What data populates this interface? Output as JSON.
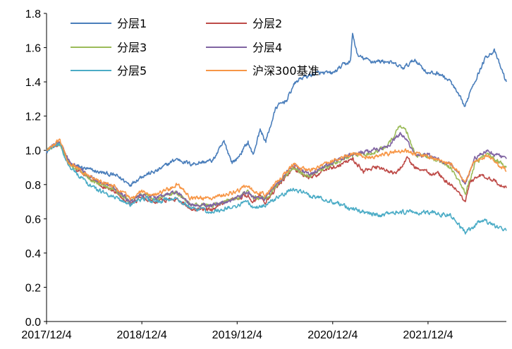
{
  "chart_data": {
    "type": "line",
    "title": "",
    "xlabel": "",
    "ylabel": "",
    "ylim": [
      0.0,
      1.8
    ],
    "yticks": [
      0.0,
      0.2,
      0.4,
      0.6,
      0.8,
      1.0,
      1.2,
      1.4,
      1.6,
      1.8
    ],
    "ytick_labels": [
      "0.0",
      "0.2",
      "0.4",
      "0.6",
      "0.8",
      "1.0",
      "1.2",
      "1.4",
      "1.6",
      "1.8"
    ],
    "xlim": [
      "2017-12-04",
      "2022-09-30"
    ],
    "xticks": [
      "2017-12-04",
      "2018-12-04",
      "2019-12-04",
      "2020-12-04",
      "2021-12-04"
    ],
    "xtick_labels": [
      "2017/12/4",
      "2018/12/4",
      "2019/12/4",
      "2020/12/4",
      "2021/12/4"
    ],
    "grid": false,
    "legend_position": "top-left, two columns",
    "series": [
      {
        "name": "分层1",
        "color": "#4a7ebb",
        "x": [
          "2017-12-04",
          "2018-01-01",
          "2018-01-25",
          "2018-03-01",
          "2018-06-01",
          "2018-09-01",
          "2018-10-20",
          "2018-12-04",
          "2019-02-01",
          "2019-04-15",
          "2019-06-10",
          "2019-09-01",
          "2019-10-15",
          "2019-11-15",
          "2019-12-04",
          "2020-01-15",
          "2020-02-03",
          "2020-03-01",
          "2020-03-23",
          "2020-05-01",
          "2020-06-15",
          "2020-07-06",
          "2020-08-01",
          "2020-10-01",
          "2020-12-04",
          "2021-01-15",
          "2021-02-10",
          "2021-02-18",
          "2021-03-10",
          "2021-05-01",
          "2021-07-01",
          "2021-09-01",
          "2021-10-15",
          "2021-12-04",
          "2022-01-15",
          "2022-03-01",
          "2022-04-26",
          "2022-05-15",
          "2022-06-15",
          "2022-07-15",
          "2022-08-15",
          "2022-09-30"
        ],
        "values": [
          1.0,
          1.02,
          1.05,
          0.92,
          0.88,
          0.85,
          0.8,
          0.85,
          0.88,
          0.95,
          0.92,
          0.94,
          1.05,
          0.93,
          0.95,
          1.05,
          0.97,
          1.12,
          1.05,
          1.25,
          1.3,
          1.38,
          1.42,
          1.45,
          1.45,
          1.5,
          1.52,
          1.68,
          1.55,
          1.52,
          1.52,
          1.48,
          1.53,
          1.45,
          1.45,
          1.4,
          1.25,
          1.35,
          1.45,
          1.55,
          1.58,
          1.4
        ]
      },
      {
        "name": "分层2",
        "color": "#be4b48",
        "x": [
          "2017-12-04",
          "2018-01-25",
          "2018-03-01",
          "2018-06-01",
          "2018-09-01",
          "2018-10-20",
          "2018-12-04",
          "2019-02-01",
          "2019-04-15",
          "2019-06-10",
          "2019-09-01",
          "2019-10-01",
          "2019-12-04",
          "2020-01-15",
          "2020-02-03",
          "2020-03-01",
          "2020-03-23",
          "2020-07-06",
          "2020-09-01",
          "2020-12-04",
          "2021-02-18",
          "2021-04-01",
          "2021-06-01",
          "2021-08-01",
          "2021-09-15",
          "2021-10-15",
          "2021-12-04",
          "2022-01-15",
          "2022-03-01",
          "2022-04-26",
          "2022-05-15",
          "2022-07-01",
          "2022-09-30"
        ],
        "values": [
          1.0,
          1.04,
          0.92,
          0.82,
          0.75,
          0.69,
          0.72,
          0.7,
          0.72,
          0.66,
          0.65,
          0.68,
          0.72,
          0.74,
          0.7,
          0.74,
          0.7,
          0.9,
          0.84,
          0.9,
          0.95,
          0.88,
          0.9,
          0.86,
          0.95,
          0.9,
          0.87,
          0.86,
          0.8,
          0.7,
          0.82,
          0.86,
          0.78
        ]
      },
      {
        "name": "分层3",
        "color": "#9bbb59",
        "x": [
          "2017-12-04",
          "2018-01-25",
          "2018-03-01",
          "2018-06-01",
          "2018-09-01",
          "2018-10-20",
          "2018-12-04",
          "2019-02-01",
          "2019-04-15",
          "2019-06-10",
          "2019-09-01",
          "2019-12-04",
          "2020-01-15",
          "2020-02-03",
          "2020-03-23",
          "2020-07-06",
          "2020-09-01",
          "2020-12-04",
          "2021-02-18",
          "2021-05-01",
          "2021-07-01",
          "2021-08-20",
          "2021-09-15",
          "2021-10-15",
          "2021-12-04",
          "2022-03-01",
          "2022-04-26",
          "2022-06-01",
          "2022-07-15",
          "2022-09-30"
        ],
        "values": [
          1.0,
          1.04,
          0.92,
          0.82,
          0.76,
          0.7,
          0.74,
          0.72,
          0.76,
          0.68,
          0.68,
          0.72,
          0.76,
          0.72,
          0.72,
          0.9,
          0.85,
          0.92,
          0.97,
          0.98,
          1.02,
          1.15,
          1.1,
          0.98,
          0.96,
          0.9,
          0.75,
          0.92,
          0.98,
          0.9
        ]
      },
      {
        "name": "分层4",
        "color": "#8064a2",
        "x": [
          "2017-12-04",
          "2018-01-25",
          "2018-03-01",
          "2018-06-01",
          "2018-09-01",
          "2018-10-20",
          "2018-12-04",
          "2019-02-01",
          "2019-04-15",
          "2019-06-10",
          "2019-09-01",
          "2019-12-04",
          "2020-01-15",
          "2020-02-03",
          "2020-03-23",
          "2020-07-06",
          "2020-09-01",
          "2020-12-04",
          "2021-02-18",
          "2021-05-01",
          "2021-07-01",
          "2021-08-20",
          "2021-09-15",
          "2021-10-15",
          "2021-12-04",
          "2022-03-01",
          "2022-04-26",
          "2022-06-01",
          "2022-07-15",
          "2022-09-30"
        ],
        "values": [
          1.0,
          1.05,
          0.93,
          0.84,
          0.77,
          0.7,
          0.74,
          0.72,
          0.76,
          0.68,
          0.68,
          0.72,
          0.76,
          0.72,
          0.72,
          0.92,
          0.86,
          0.93,
          0.98,
          1.0,
          1.02,
          1.1,
          1.05,
          0.98,
          0.97,
          0.92,
          0.8,
          0.95,
          1.0,
          0.95
        ]
      },
      {
        "name": "分层5",
        "color": "#4bacc6",
        "x": [
          "2017-12-04",
          "2018-01-25",
          "2018-03-01",
          "2018-06-01",
          "2018-09-01",
          "2018-10-20",
          "2018-12-04",
          "2019-02-01",
          "2019-04-15",
          "2019-06-10",
          "2019-09-01",
          "2019-12-04",
          "2020-01-15",
          "2020-02-03",
          "2020-03-23",
          "2020-07-06",
          "2020-09-01",
          "2020-12-04",
          "2021-03-01",
          "2021-06-01",
          "2021-09-01",
          "2021-12-04",
          "2022-03-01",
          "2022-04-26",
          "2022-07-01",
          "2022-09-30"
        ],
        "values": [
          1.0,
          1.04,
          0.9,
          0.78,
          0.72,
          0.68,
          0.72,
          0.7,
          0.72,
          0.66,
          0.64,
          0.68,
          0.7,
          0.66,
          0.68,
          0.78,
          0.74,
          0.7,
          0.65,
          0.62,
          0.64,
          0.64,
          0.62,
          0.52,
          0.59,
          0.53
        ]
      },
      {
        "name": "沪深300基准",
        "color": "#f79646",
        "x": [
          "2017-12-04",
          "2018-01-25",
          "2018-03-01",
          "2018-06-01",
          "2018-09-01",
          "2018-10-20",
          "2018-12-04",
          "2019-02-01",
          "2019-04-15",
          "2019-06-10",
          "2019-09-01",
          "2019-12-04",
          "2020-01-15",
          "2020-02-03",
          "2020-03-23",
          "2020-07-06",
          "2020-09-01",
          "2020-12-04",
          "2021-02-18",
          "2021-05-01",
          "2021-07-01",
          "2021-09-01",
          "2021-10-15",
          "2021-12-04",
          "2022-03-01",
          "2022-04-26",
          "2022-06-01",
          "2022-07-15",
          "2022-09-30"
        ],
        "values": [
          1.0,
          1.06,
          0.92,
          0.84,
          0.78,
          0.72,
          0.76,
          0.74,
          0.8,
          0.72,
          0.72,
          0.76,
          0.8,
          0.76,
          0.74,
          0.92,
          0.88,
          0.94,
          0.98,
          0.96,
          0.98,
          1.0,
          0.98,
          0.96,
          0.92,
          0.82,
          0.94,
          0.97,
          0.88
        ]
      }
    ]
  }
}
